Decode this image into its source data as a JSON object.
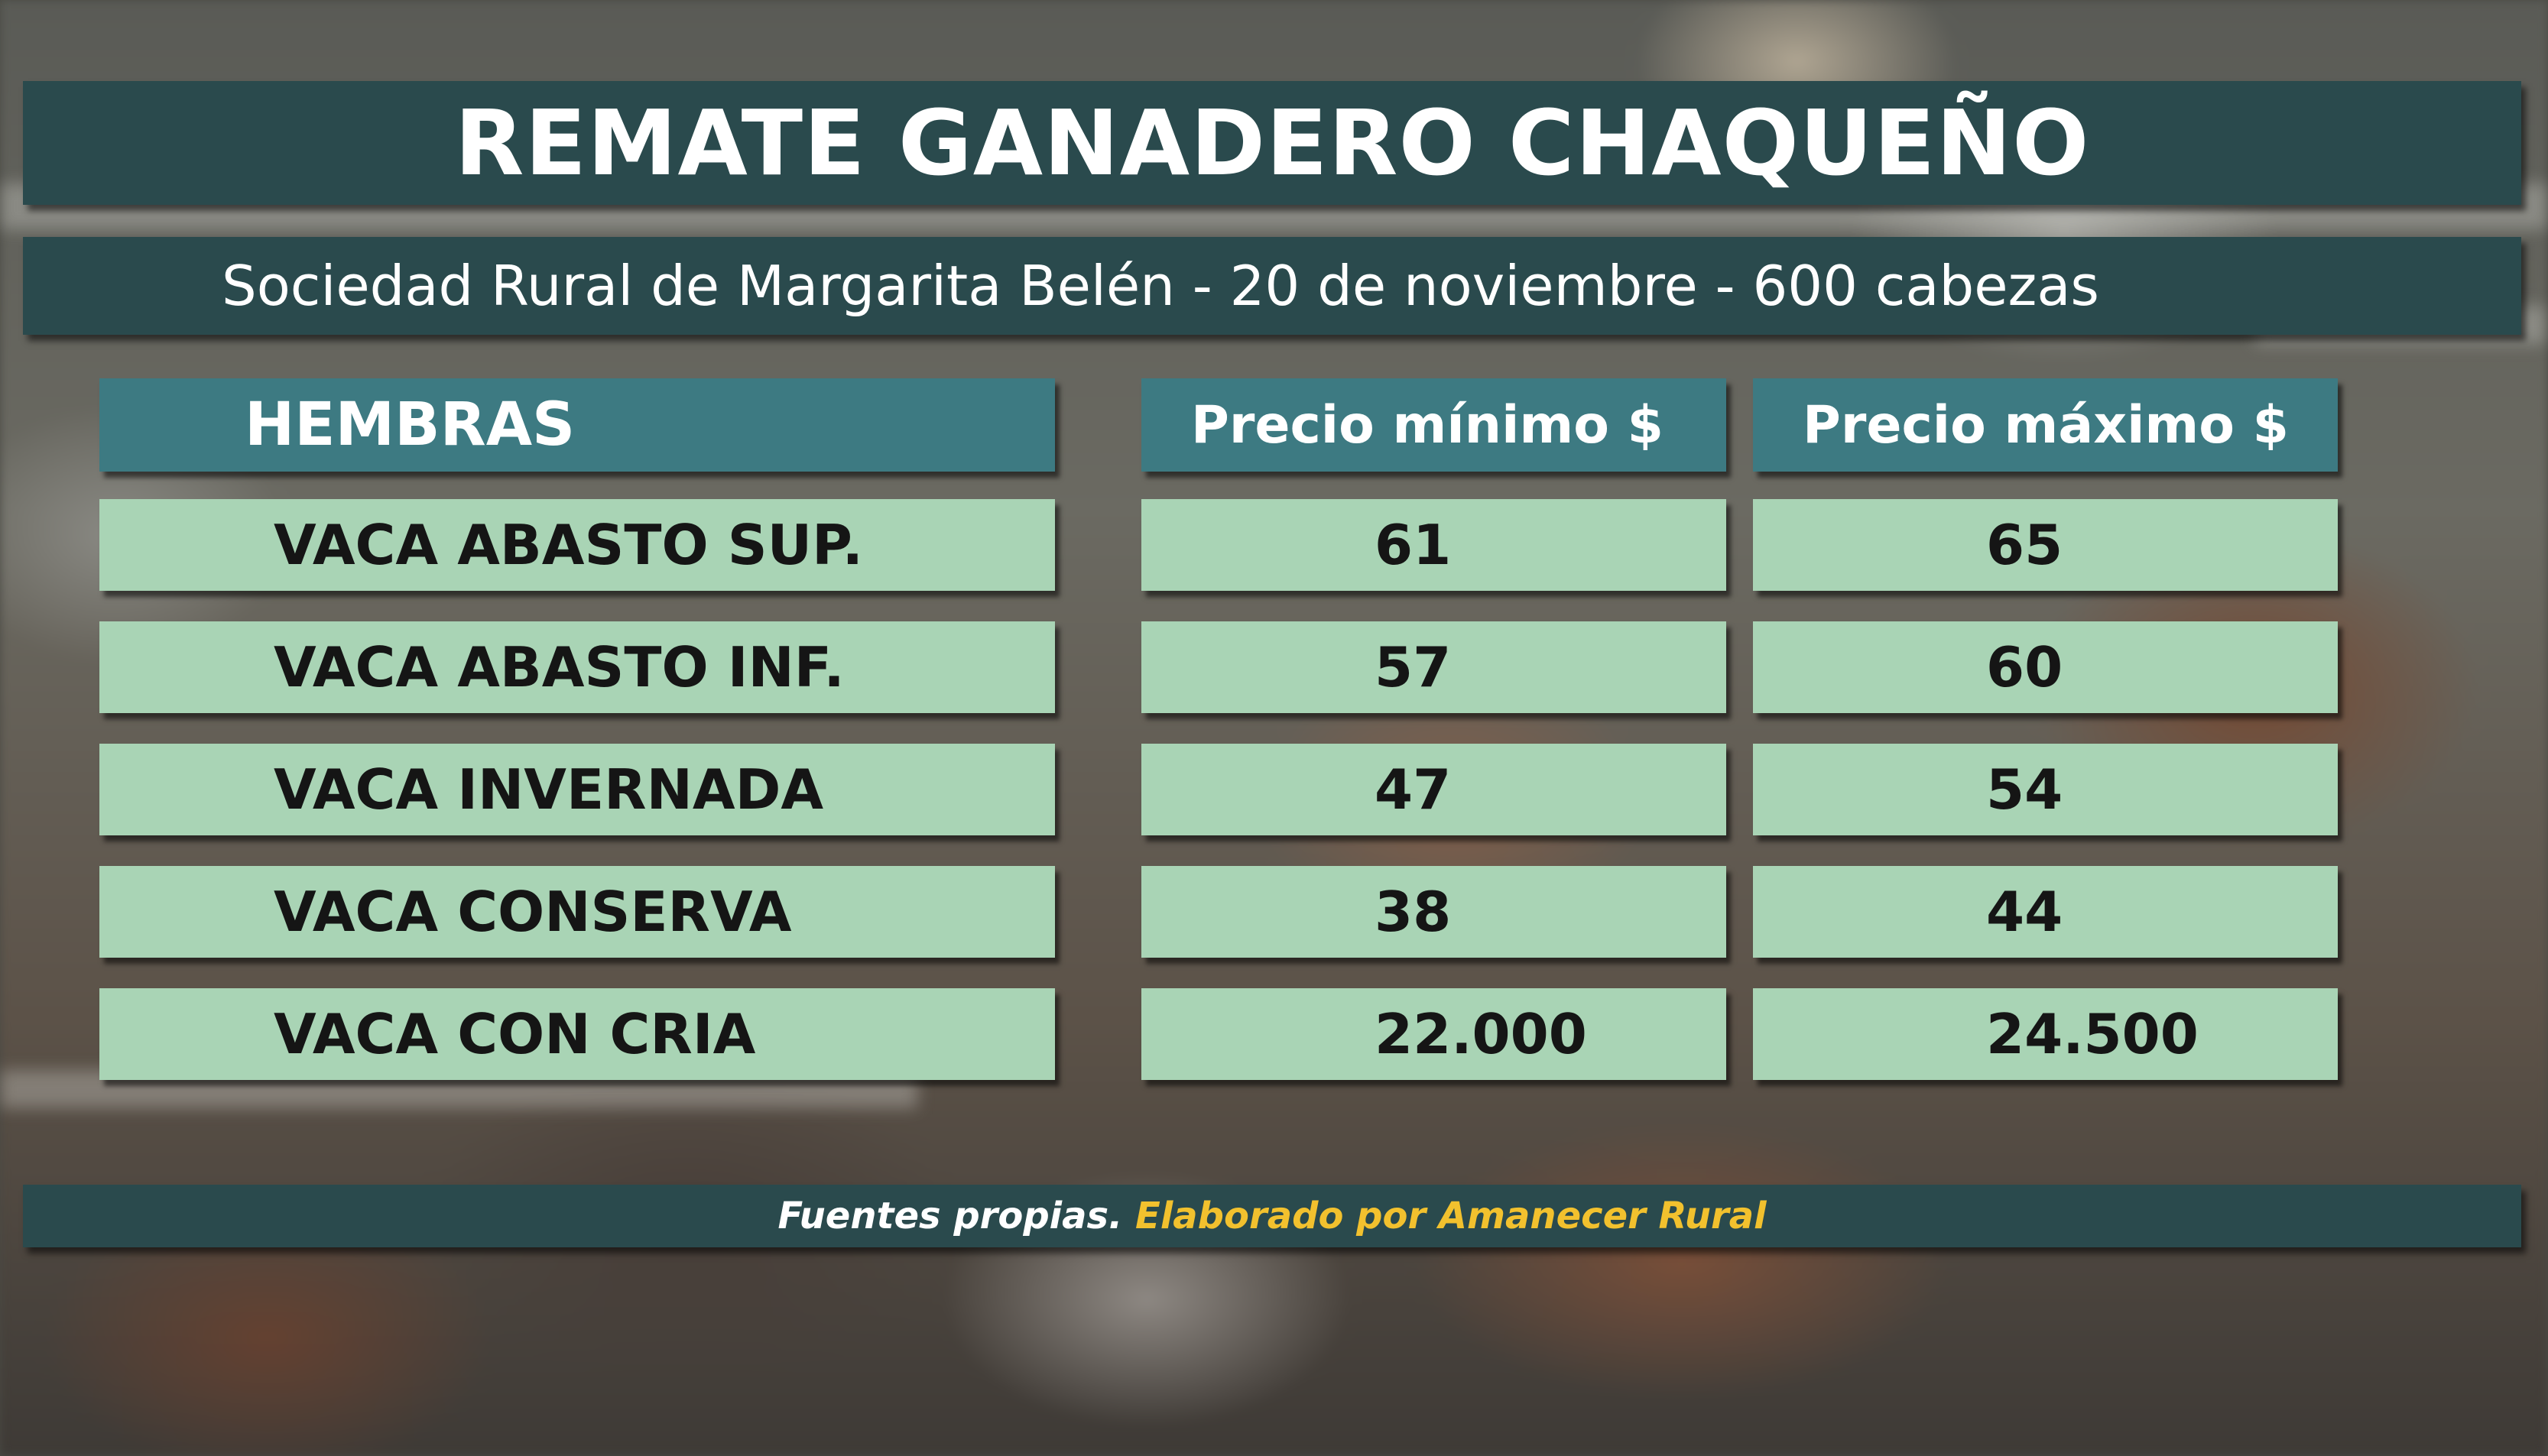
{
  "title": "REMATE GANADERO CHAQUEÑO",
  "subtitle": "Sociedad Rural de Margarita Belén - 20 de noviembre  -  600 cabezas",
  "table": {
    "headers": [
      "HEMBRAS",
      "Precio mínimo $",
      "Precio máximo $"
    ],
    "rows": [
      {
        "category": "VACA ABASTO SUP.",
        "min": "61",
        "max": "65"
      },
      {
        "category": "VACA ABASTO INF.",
        "min": "57",
        "max": "60"
      },
      {
        "category": "VACA INVERNADA",
        "min": "47",
        "max": "54"
      },
      {
        "category": "VACA CONSERVA",
        "min": "38",
        "max": "44"
      },
      {
        "category": "VACA CON CRIA",
        "min": "22.000",
        "max": "24.500"
      }
    ]
  },
  "footer": {
    "source": "Fuentes propias.",
    "credit": "Elaborado por  Amanecer Rural"
  },
  "colors": {
    "banner": "#2a4a4d",
    "header_cell": "#3d7a82",
    "row_cell": "#a9d4b5",
    "credit_text": "#f2c12e"
  }
}
